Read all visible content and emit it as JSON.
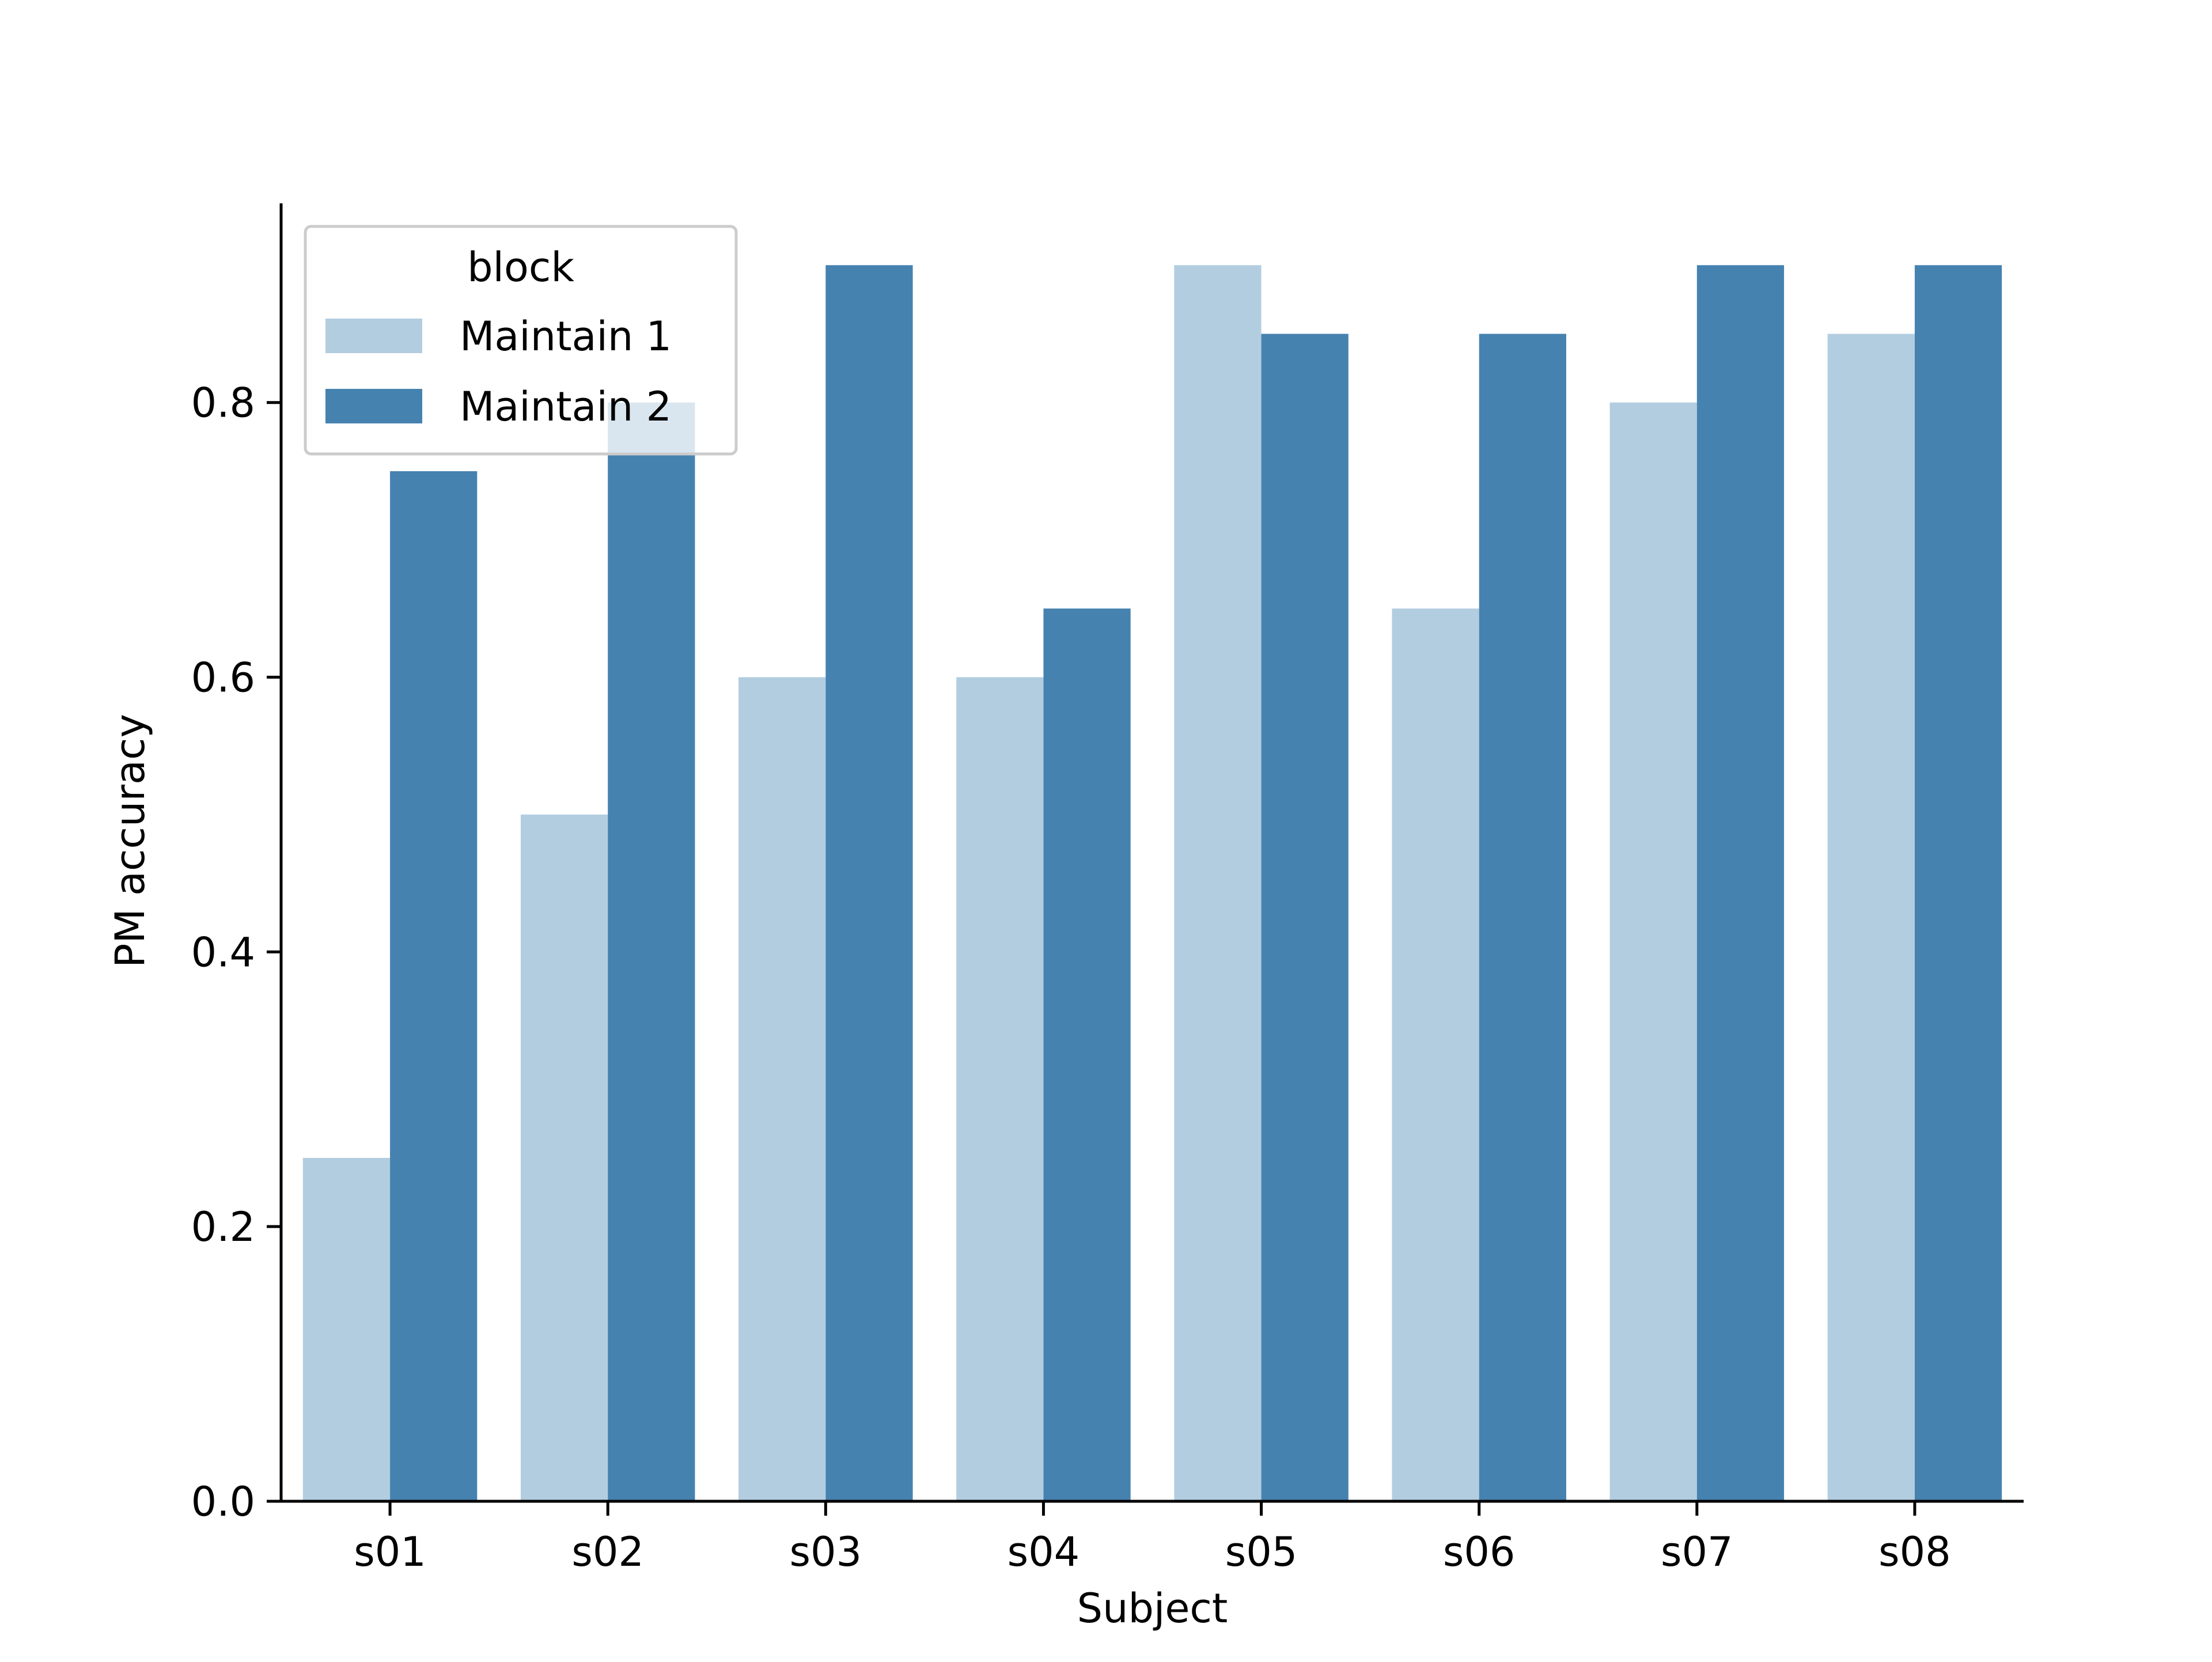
{
  "chart_data": {
    "type": "bar",
    "xlabel": "Subject",
    "ylabel": "PM accuracy",
    "categories": [
      "s01",
      "s02",
      "s03",
      "s04",
      "s05",
      "s06",
      "s07",
      "s08"
    ],
    "series": [
      {
        "name": "Maintain 1",
        "color": "#b3cde0",
        "values": [
          0.25,
          0.5,
          0.6,
          0.6,
          0.9,
          0.65,
          0.8,
          0.85
        ]
      },
      {
        "name": "Maintain 2",
        "color": "#4682b0",
        "values": [
          0.75,
          0.8,
          0.9,
          0.65,
          0.85,
          0.85,
          0.9,
          0.9
        ]
      }
    ],
    "ylim": [
      0,
      0.945
    ],
    "yticks": [
      0.0,
      0.2,
      0.4,
      0.6,
      0.8
    ],
    "ytick_labels": [
      "0.0",
      "0.2",
      "0.4",
      "0.6",
      "0.8"
    ],
    "grid": false,
    "legend": {
      "title": "block",
      "placement": "top-left"
    }
  }
}
